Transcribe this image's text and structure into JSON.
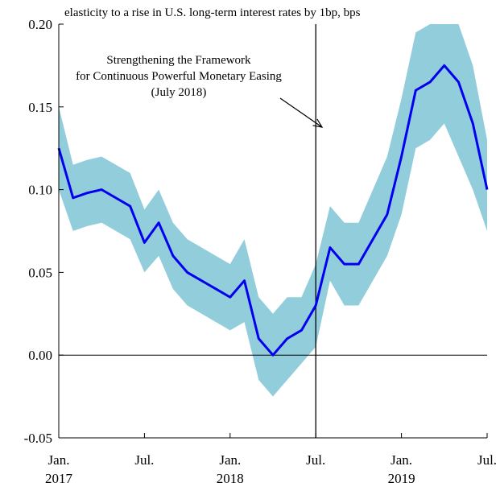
{
  "chart_data": {
    "type": "line",
    "title": "elasticity to a rise in U.S. long-term interest rates by 1bp, bps",
    "x": [
      "2017-01",
      "2017-02",
      "2017-03",
      "2017-04",
      "2017-05",
      "2017-06",
      "2017-07",
      "2017-08",
      "2017-09",
      "2017-10",
      "2017-11",
      "2017-12",
      "2018-01",
      "2018-02",
      "2018-03",
      "2018-04",
      "2018-05",
      "2018-06",
      "2018-07",
      "2018-08",
      "2018-09",
      "2018-10",
      "2018-11",
      "2018-12",
      "2019-01",
      "2019-02",
      "2019-03",
      "2019-04",
      "2019-05",
      "2019-06",
      "2019-07"
    ],
    "series": [
      {
        "color": "#0000ee",
        "values": [
          0.125,
          0.095,
          0.098,
          0.1,
          0.095,
          0.09,
          0.068,
          0.08,
          0.06,
          0.05,
          0.045,
          0.04,
          0.035,
          0.045,
          0.01,
          0.0,
          0.01,
          0.015,
          0.03,
          0.065,
          0.055,
          0.055,
          0.07,
          0.085,
          0.12,
          0.16,
          0.165,
          0.175,
          0.165,
          0.14,
          0.1
        ]
      }
    ],
    "band": {
      "color": "#92cddc",
      "lower": [
        0.1,
        0.075,
        0.078,
        0.08,
        0.075,
        0.07,
        0.05,
        0.06,
        0.04,
        0.03,
        0.025,
        0.02,
        0.015,
        0.02,
        -0.015,
        -0.025,
        -0.015,
        -0.005,
        0.005,
        0.045,
        0.03,
        0.03,
        0.045,
        0.06,
        0.085,
        0.125,
        0.13,
        0.14,
        0.12,
        0.1,
        0.075
      ],
      "upper": [
        0.15,
        0.115,
        0.118,
        0.12,
        0.115,
        0.11,
        0.088,
        0.1,
        0.08,
        0.07,
        0.065,
        0.06,
        0.055,
        0.07,
        0.035,
        0.025,
        0.035,
        0.035,
        0.055,
        0.09,
        0.08,
        0.08,
        0.1,
        0.12,
        0.155,
        0.195,
        0.2,
        0.2,
        0.2,
        0.175,
        0.13
      ]
    },
    "xlim": [
      "2017-01",
      "2019-07"
    ],
    "xticks": [
      {
        "value": "2017-01",
        "label": "Jan.",
        "year": "2017"
      },
      {
        "value": "2017-07",
        "label": "Jul."
      },
      {
        "value": "2018-01",
        "label": "Jan.",
        "year": "2018"
      },
      {
        "value": "2018-07",
        "label": "Jul."
      },
      {
        "value": "2019-01",
        "label": "Jan.",
        "year": "2019"
      },
      {
        "value": "2019-07",
        "label": "Jul."
      }
    ],
    "ylim": [
      -0.05,
      0.2
    ],
    "yticks": [
      {
        "value": -0.05,
        "label": "-0.05"
      },
      {
        "value": 0,
        "label": "0.00"
      },
      {
        "value": 0.05,
        "label": "0.05"
      },
      {
        "value": 0.1,
        "label": "0.10"
      },
      {
        "value": 0.15,
        "label": "0.15"
      },
      {
        "value": 0.2,
        "label": "0.20"
      }
    ],
    "vline": "2018-07",
    "annotation": [
      "Strengthening the Framework",
      "for Continuous Powerful Monetary Easing",
      "(July 2018)"
    ]
  }
}
